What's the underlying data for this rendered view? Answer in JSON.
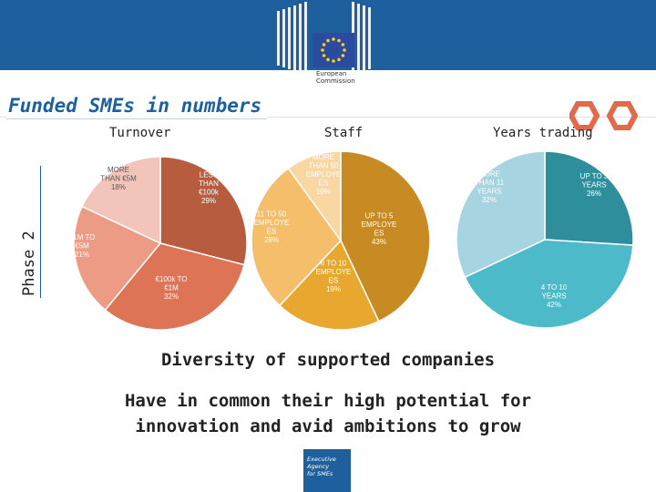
{
  "header": {
    "logo_text_line1": "European",
    "logo_text_line2": "Commission",
    "page_title": "Funded SMEs in numbers",
    "phase_label": "Phase 2"
  },
  "chart_data": [
    {
      "type": "pie",
      "title": "Turnover",
      "slices": [
        {
          "label_lines": [
            "LESS",
            "THAN",
            "€100k"
          ],
          "value": 29,
          "pct_label": "29%",
          "color": "#b85c40",
          "text_color": "#ffffff"
        },
        {
          "label_lines": [
            "€100k TO",
            "€1M"
          ],
          "value": 32,
          "pct_label": "32%",
          "color": "#de7456",
          "text_color": "#ffffff"
        },
        {
          "label_lines": [
            "€1M TO",
            "€5M"
          ],
          "value": 21,
          "pct_label": "21%",
          "color": "#ec9c85",
          "text_color": "#ffffff"
        },
        {
          "label_lines": [
            "MORE",
            "THAN €5M"
          ],
          "value": 18,
          "pct_label": "18%",
          "color": "#f3c4b9",
          "text_color": "#555555"
        }
      ]
    },
    {
      "type": "pie",
      "title": "Staff",
      "slices": [
        {
          "label_lines": [
            "UP TO 5",
            "EMPLOYE",
            "ES"
          ],
          "value": 43,
          "pct_label": "43%",
          "color": "#c88b24",
          "text_color": "#ffffff"
        },
        {
          "label_lines": [
            "6 TO 10",
            "EMPLOYE",
            "ES"
          ],
          "value": 19,
          "pct_label": "19%",
          "color": "#e8a830",
          "text_color": "#ffffff"
        },
        {
          "label_lines": [
            "11 TO 50",
            "EMPLOYE",
            "ES"
          ],
          "value": 28,
          "pct_label": "28%",
          "color": "#f5be6a",
          "text_color": "#ffffff"
        },
        {
          "label_lines": [
            "MORE",
            "THAN 50",
            "EMPLOYE",
            "ES"
          ],
          "value": 10,
          "pct_label": "10%",
          "color": "#f9d7a3",
          "text_color": "#ffffff"
        }
      ]
    },
    {
      "type": "pie",
      "title": "Years trading",
      "slices": [
        {
          "label_lines": [
            "UP TO 3",
            "YEARS"
          ],
          "value": 26,
          "pct_label": "26%",
          "color": "#2f8e9c",
          "text_color": "#ffffff"
        },
        {
          "label_lines": [
            "4 TO 10",
            "YEARS"
          ],
          "value": 42,
          "pct_label": "42%",
          "color": "#4dbac9",
          "text_color": "#ffffff"
        },
        {
          "label_lines": [
            "MORE",
            "THAN 11",
            "YEARS"
          ],
          "value": 32,
          "pct_label": "32%",
          "color": "#a6d4e1",
          "text_color": "#ffffff"
        }
      ]
    }
  ],
  "footer": {
    "headline": "Diversity of supported companies",
    "line1": "Have in common their high potential for",
    "line2": "innovation and avid ambitions to grow",
    "agency_line1": "Executive",
    "agency_line2": "Agency",
    "agency_line3": "for SMEs"
  },
  "colors": {
    "brand_blue": "#1e5f9e",
    "hex_accent": "#e06a4a",
    "eu_yellow": "#f5d31b"
  }
}
